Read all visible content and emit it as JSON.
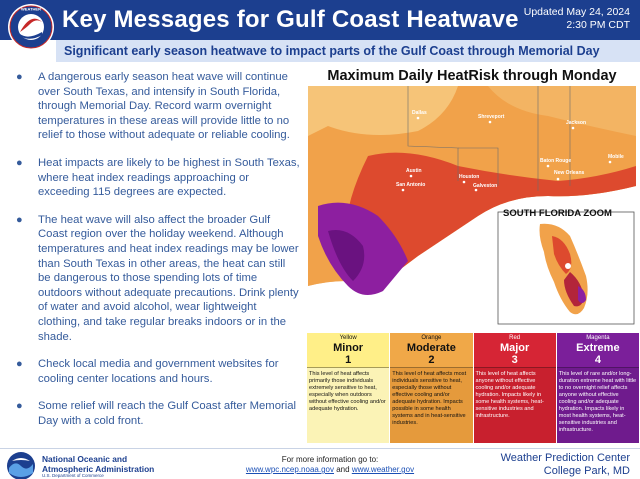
{
  "header": {
    "title": "Key Messages for Gulf Coast Heatwave",
    "updated_line1": "Updated May 24, 2024",
    "updated_line2": "2:30 PM CDT",
    "logo_text": "NATIONAL WEATHER SERVICE"
  },
  "subtitle": "Significant early season heatwave to impact parts of the Gulf Coast through Memorial Day",
  "bullets": [
    "A dangerous early season heat wave will continue over South Texas, and intensify in South Florida, through Memorial Day. Record warm overnight temperatures in these areas will provide little to no relief to those without adequate or reliable cooling.",
    "Heat impacts are likely to be highest in South Texas, where heat index readings approaching or exceeding 115 degrees are expected.",
    "The heat wave will also affect the broader Gulf Coast region over the holiday weekend. Although temperatures and heat index readings may be lower than South Texas in other areas, the heat can still be dangerous to those spending lots of time outdoors without adequate precautions. Drink plenty of water and avoid alcohol, wear lightweight clothing, and take regular breaks indoors or in the shade.",
    "Check local media and government websites for cooling center locations and hours.",
    "Some relief will reach the Gulf Coast after Memorial Day with a cold front."
  ],
  "map": {
    "title": "Maximum Daily HeatRisk through Monday",
    "inset_label": "SOUTH FLORIDA ZOOM",
    "cities": [
      "Dallas",
      "Shreveport",
      "Jackson",
      "Austin",
      "Houston",
      "San Antonio",
      "Galveston",
      "Baton Rouge",
      "Mobile",
      "New Orleans"
    ]
  },
  "legend": [
    {
      "color_name": "Yellow",
      "name": "Minor",
      "num": "1",
      "desc": "This level of heat affects primarily those individuals extremely sensitive to heat, especially when outdoors without effective cooling and/or adequate hydration."
    },
    {
      "color_name": "Orange",
      "name": "Moderate",
      "num": "2",
      "desc": "This level of heat affects most individuals sensitive to heat, especially those without effective cooling and/or adequate hydration. Impacts possible in some health systems and in heat-sensitive industries."
    },
    {
      "color_name": "Red",
      "name": "Major",
      "num": "3",
      "desc": "This level of heat affects anyone without effective cooling and/or adequate hydration. Impacts likely in some health systems, heat-sensitive industries and infrastructure."
    },
    {
      "color_name": "Magenta",
      "name": "Extreme",
      "num": "4",
      "desc": "This level of rare and/or long-duration extreme heat with little to no overnight relief affects anyone without effective cooling and/or adequate hydration. Impacts likely in most health systems, heat-sensitive industries and infrastructure."
    }
  ],
  "footer": {
    "noaa_line1": "National Oceanic and",
    "noaa_line2": "Atmospheric Administration",
    "noaa_dept": "U.S. Department of Commerce",
    "more_info": "For more information go to:",
    "link1": "www.wpc.ncep.noaa.gov",
    "link_and": "and",
    "link2": "www.weather.gov",
    "wpc_line1": "Weather Prediction Center",
    "wpc_line2": "College Park, MD"
  },
  "colors": {
    "header_blue": "#1c3f8f",
    "minor": "#ffef88",
    "moderate": "#f0a848",
    "major": "#d62535",
    "extreme": "#7b1f9a"
  }
}
